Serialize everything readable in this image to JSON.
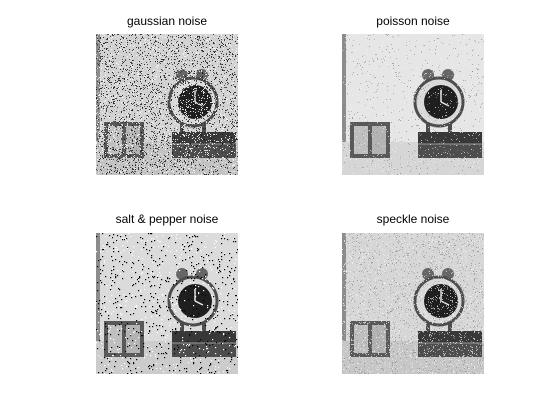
{
  "figure": {
    "background": "#ffffff",
    "colormap": "gray",
    "panels": [
      {
        "title": "gaussian noise",
        "noise_type": "gaussian",
        "base_level": 0.82,
        "noise_density": 0.55,
        "content": [
          "alarm-clock",
          "books",
          "picture-frame"
        ]
      },
      {
        "title": "poisson noise",
        "noise_type": "poisson",
        "base_level": 0.9,
        "noise_density": 0.12,
        "content": [
          "alarm-clock",
          "books",
          "picture-frame"
        ]
      },
      {
        "title": "salt & pepper noise",
        "noise_type": "salt-and-pepper",
        "base_level": 0.86,
        "noise_density": 0.05,
        "content": [
          "alarm-clock",
          "books",
          "picture-frame"
        ]
      },
      {
        "title": "speckle noise",
        "noise_type": "speckle",
        "base_level": 0.84,
        "noise_density": 0.3,
        "content": [
          "alarm-clock",
          "books",
          "picture-frame"
        ]
      }
    ]
  }
}
